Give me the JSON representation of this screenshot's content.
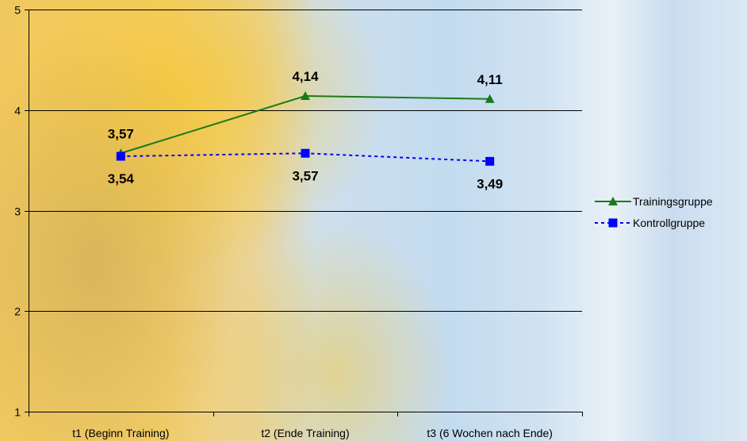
{
  "chart_data": {
    "type": "line",
    "categories": [
      "t1 (Beginn Training)",
      "t2 (Ende Training)",
      "t3 (6 Wochen nach Ende)"
    ],
    "series": [
      {
        "name": "Trainingsgruppe",
        "values": [
          3.57,
          4.14,
          4.11
        ],
        "labels": [
          "3,57",
          "4,14",
          "4,11"
        ],
        "color": "#1a7a1a",
        "marker": "triangle",
        "line": "solid"
      },
      {
        "name": "Kontrollgruppe",
        "values": [
          3.54,
          3.57,
          3.49
        ],
        "labels": [
          "3,54",
          "3,57",
          "3,49"
        ],
        "color": "#0000ff",
        "marker": "square",
        "line": "dashed"
      }
    ],
    "ylim": [
      1,
      5
    ],
    "yticks": [
      1,
      2,
      3,
      4,
      5
    ],
    "ytick_labels": [
      "1",
      "2",
      "3",
      "4",
      "5"
    ],
    "grid": true,
    "legend": "right",
    "title": "",
    "xlabel": "",
    "ylabel": ""
  }
}
